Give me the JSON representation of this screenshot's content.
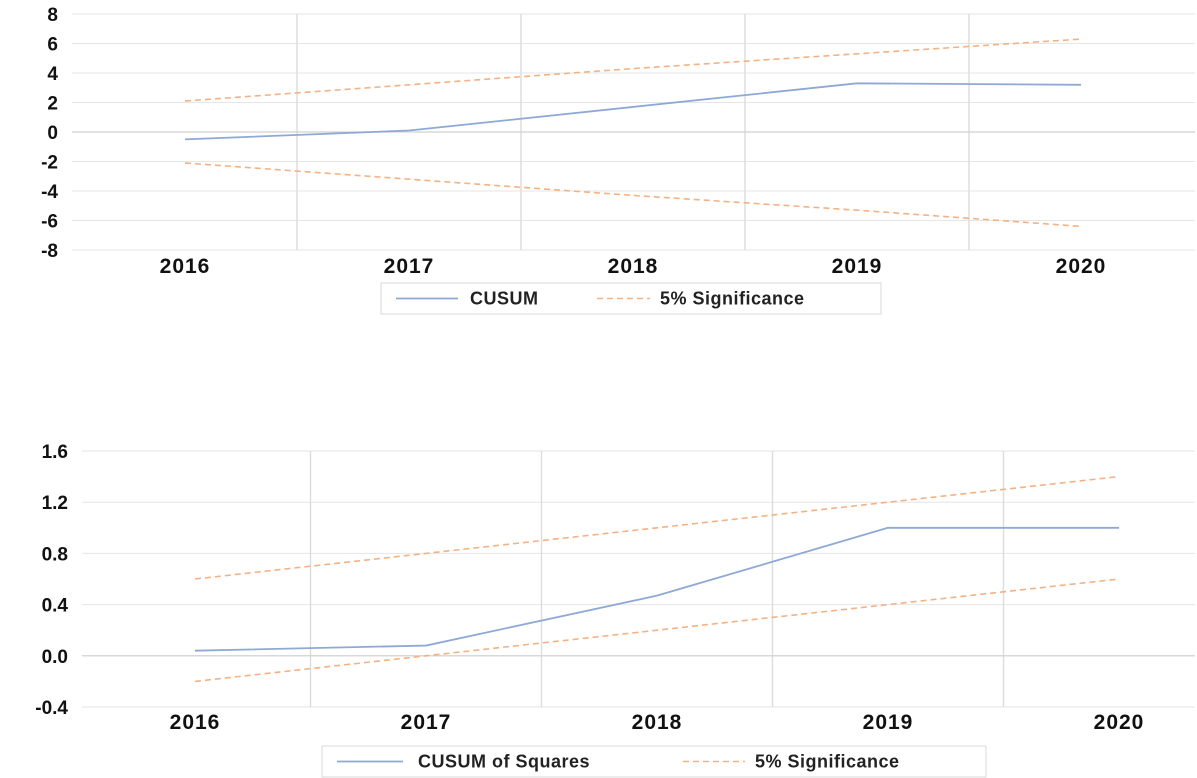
{
  "chart_data": [
    {
      "type": "line",
      "categories": [
        "2016",
        "2017",
        "2018",
        "2019",
        "2020"
      ],
      "ylim": [
        -8,
        8
      ],
      "yticks": [
        "8",
        "6",
        "4",
        "2",
        "0",
        "-2",
        "-4",
        "-6",
        "-8"
      ],
      "grid": "vertical",
      "legend_position": "bottom",
      "series": [
        {
          "name": "CUSUM",
          "values": [
            -0.5,
            0.1,
            1.7,
            3.3,
            3.2
          ],
          "color": "#8ea9d6",
          "style": "solid"
        },
        {
          "name": "5% Significance",
          "values": [
            2.1,
            3.2,
            4.3,
            5.3,
            6.3
          ],
          "color": "#f4b183",
          "style": "dashed"
        },
        {
          "name": "",
          "values": [
            -2.1,
            -3.2,
            -4.3,
            -5.3,
            -6.4
          ],
          "color": "#f4b183",
          "style": "dashed"
        }
      ]
    },
    {
      "type": "line",
      "categories": [
        "2016",
        "2017",
        "2018",
        "2019",
        "2020"
      ],
      "ylim": [
        -0.4,
        1.6
      ],
      "yticks": [
        "1.6",
        "1.2",
        "0.8",
        "0.4",
        "0.0",
        "-0.4"
      ],
      "grid": "vertical",
      "legend_position": "bottom",
      "series": [
        {
          "name": "CUSUM of Squares",
          "values": [
            0.04,
            0.08,
            0.47,
            1.0,
            1.0
          ],
          "color": "#8ea9d6",
          "style": "solid"
        },
        {
          "name": "5% Significance",
          "values": [
            0.6,
            0.8,
            1.0,
            1.2,
            1.4
          ],
          "color": "#f4b183",
          "style": "dashed"
        },
        {
          "name": "",
          "values": [
            -0.2,
            0.0,
            0.2,
            0.4,
            0.6
          ],
          "color": "#f4b183",
          "style": "dashed"
        }
      ]
    }
  ]
}
